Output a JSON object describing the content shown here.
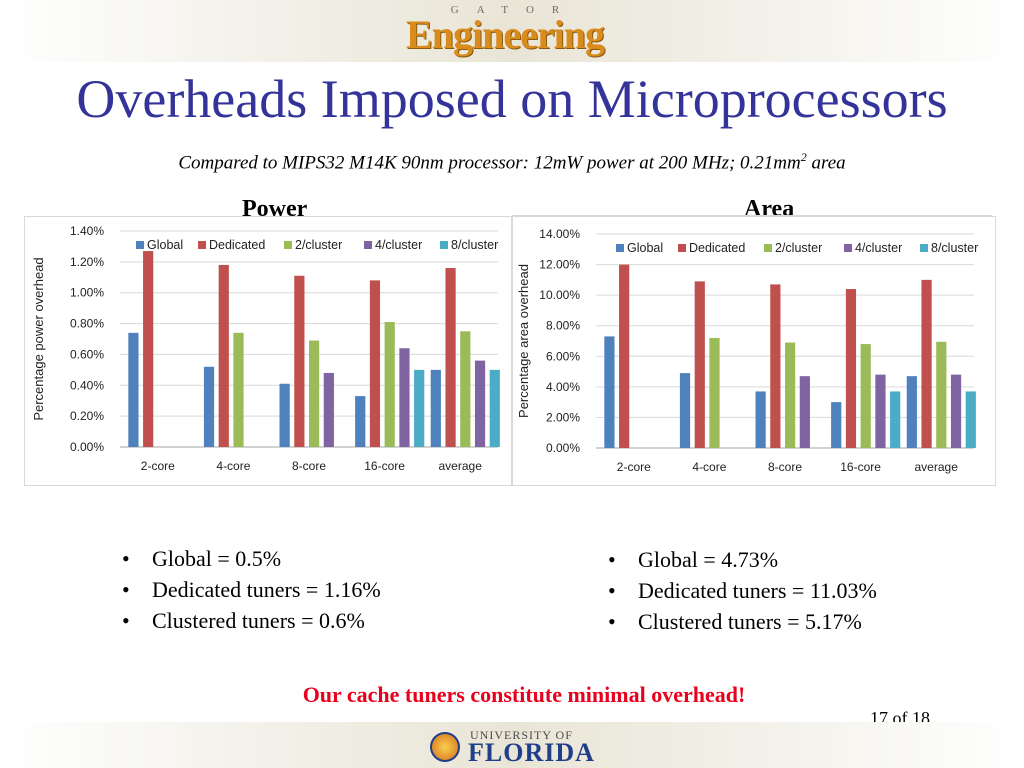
{
  "header": {
    "logo_small": "GATOR",
    "logo_main": "Engineering",
    "title": "Overheads Imposed on Microprocessors",
    "subtitle_main": "Compared to MIPS32 M14K 90nm processor: 12mW power at 200 MHz; 0.21mm",
    "subtitle_sup": "2",
    "subtitle_end": " area"
  },
  "power": {
    "heading": "Power",
    "bullets": [
      "Global = 0.5%",
      "Dedicated tuners = 1.16%",
      "Clustered tuners = 0.6%"
    ]
  },
  "area": {
    "heading": "Area",
    "bullets": [
      "Global = 4.73%",
      "Dedicated tuners = 11.03%",
      "Clustered tuners = 5.17%"
    ]
  },
  "conclusion": "Our cache tuners constitute minimal overhead!",
  "page_number": "17 of 18",
  "footer": {
    "univ": "UNIVERSITY OF",
    "state": "FLORIDA"
  },
  "chart_data": [
    {
      "id": "power",
      "type": "bar",
      "ylabel": "Percentage power overhead",
      "ylim": [
        0,
        1.4
      ],
      "yticks": [
        "0.00%",
        "0.20%",
        "0.40%",
        "0.60%",
        "0.80%",
        "1.00%",
        "1.20%",
        "1.40%"
      ],
      "categories": [
        "2-core",
        "4-core",
        "8-core",
        "16-core",
        "average"
      ],
      "legend_position": "top",
      "grid": true,
      "series": [
        {
          "name": "Global",
          "color": "#4f81bd",
          "values": [
            0.74,
            0.52,
            0.41,
            0.33,
            0.5
          ]
        },
        {
          "name": "Dedicated",
          "color": "#c0504d",
          "values": [
            1.27,
            1.18,
            1.11,
            1.08,
            1.16
          ]
        },
        {
          "name": "2/cluster",
          "color": "#9bbb59",
          "values": [
            null,
            0.74,
            0.69,
            0.81,
            0.75
          ]
        },
        {
          "name": "4/cluster",
          "color": "#8064a2",
          "values": [
            null,
            null,
            0.48,
            0.64,
            0.56
          ]
        },
        {
          "name": "8/cluster",
          "color": "#4bacc6",
          "values": [
            null,
            null,
            null,
            0.5,
            0.5
          ]
        }
      ]
    },
    {
      "id": "area",
      "type": "bar",
      "ylabel": "Percentage area overhead",
      "ylim": [
        0,
        14
      ],
      "yticks": [
        "0.00%",
        "2.00%",
        "4.00%",
        "6.00%",
        "8.00%",
        "10.00%",
        "12.00%",
        "14.00%"
      ],
      "categories": [
        "2-core",
        "4-core",
        "8-core",
        "16-core",
        "average"
      ],
      "legend_position": "top",
      "grid": true,
      "series": [
        {
          "name": "Global",
          "color": "#4f81bd",
          "values": [
            7.3,
            4.9,
            3.7,
            3.0,
            4.7
          ]
        },
        {
          "name": "Dedicated",
          "color": "#c0504d",
          "values": [
            12.0,
            10.9,
            10.7,
            10.4,
            11.0
          ]
        },
        {
          "name": "2/cluster",
          "color": "#9bbb59",
          "values": [
            null,
            7.2,
            6.9,
            6.8,
            6.95
          ]
        },
        {
          "name": "4/cluster",
          "color": "#8064a2",
          "values": [
            null,
            null,
            4.7,
            4.8,
            4.8
          ]
        },
        {
          "name": "8/cluster",
          "color": "#4bacc6",
          "values": [
            null,
            null,
            null,
            3.7,
            3.7
          ]
        }
      ]
    }
  ]
}
